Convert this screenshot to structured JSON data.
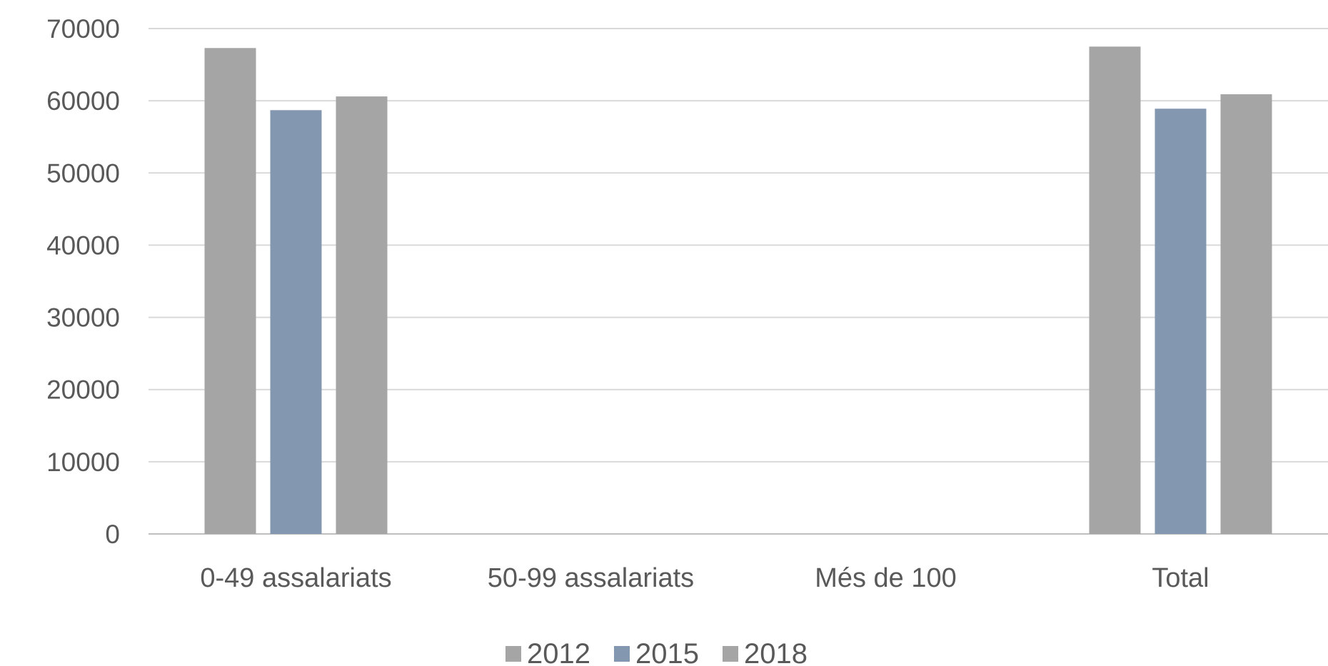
{
  "chart_data": {
    "type": "bar",
    "categories": [
      "0-49 assalariats",
      "50-99 assalariats",
      "Més de 100",
      "Total"
    ],
    "series": [
      {
        "name": "2012",
        "color": "#a5a5a5",
        "values": [
          67300,
          null,
          null,
          67500
        ]
      },
      {
        "name": "2015",
        "color": "#8497b0",
        "values": [
          58700,
          null,
          null,
          58900
        ]
      },
      {
        "name": "2018",
        "color": "#a5a5a5",
        "values": [
          60600,
          null,
          null,
          60900
        ]
      }
    ],
    "ylim": [
      0,
      70000
    ],
    "yticks": [
      0,
      10000,
      20000,
      30000,
      40000,
      50000,
      60000,
      70000
    ],
    "title": "",
    "xlabel": "",
    "ylabel": "",
    "grid": "horizontal",
    "legend_position": "bottom"
  }
}
